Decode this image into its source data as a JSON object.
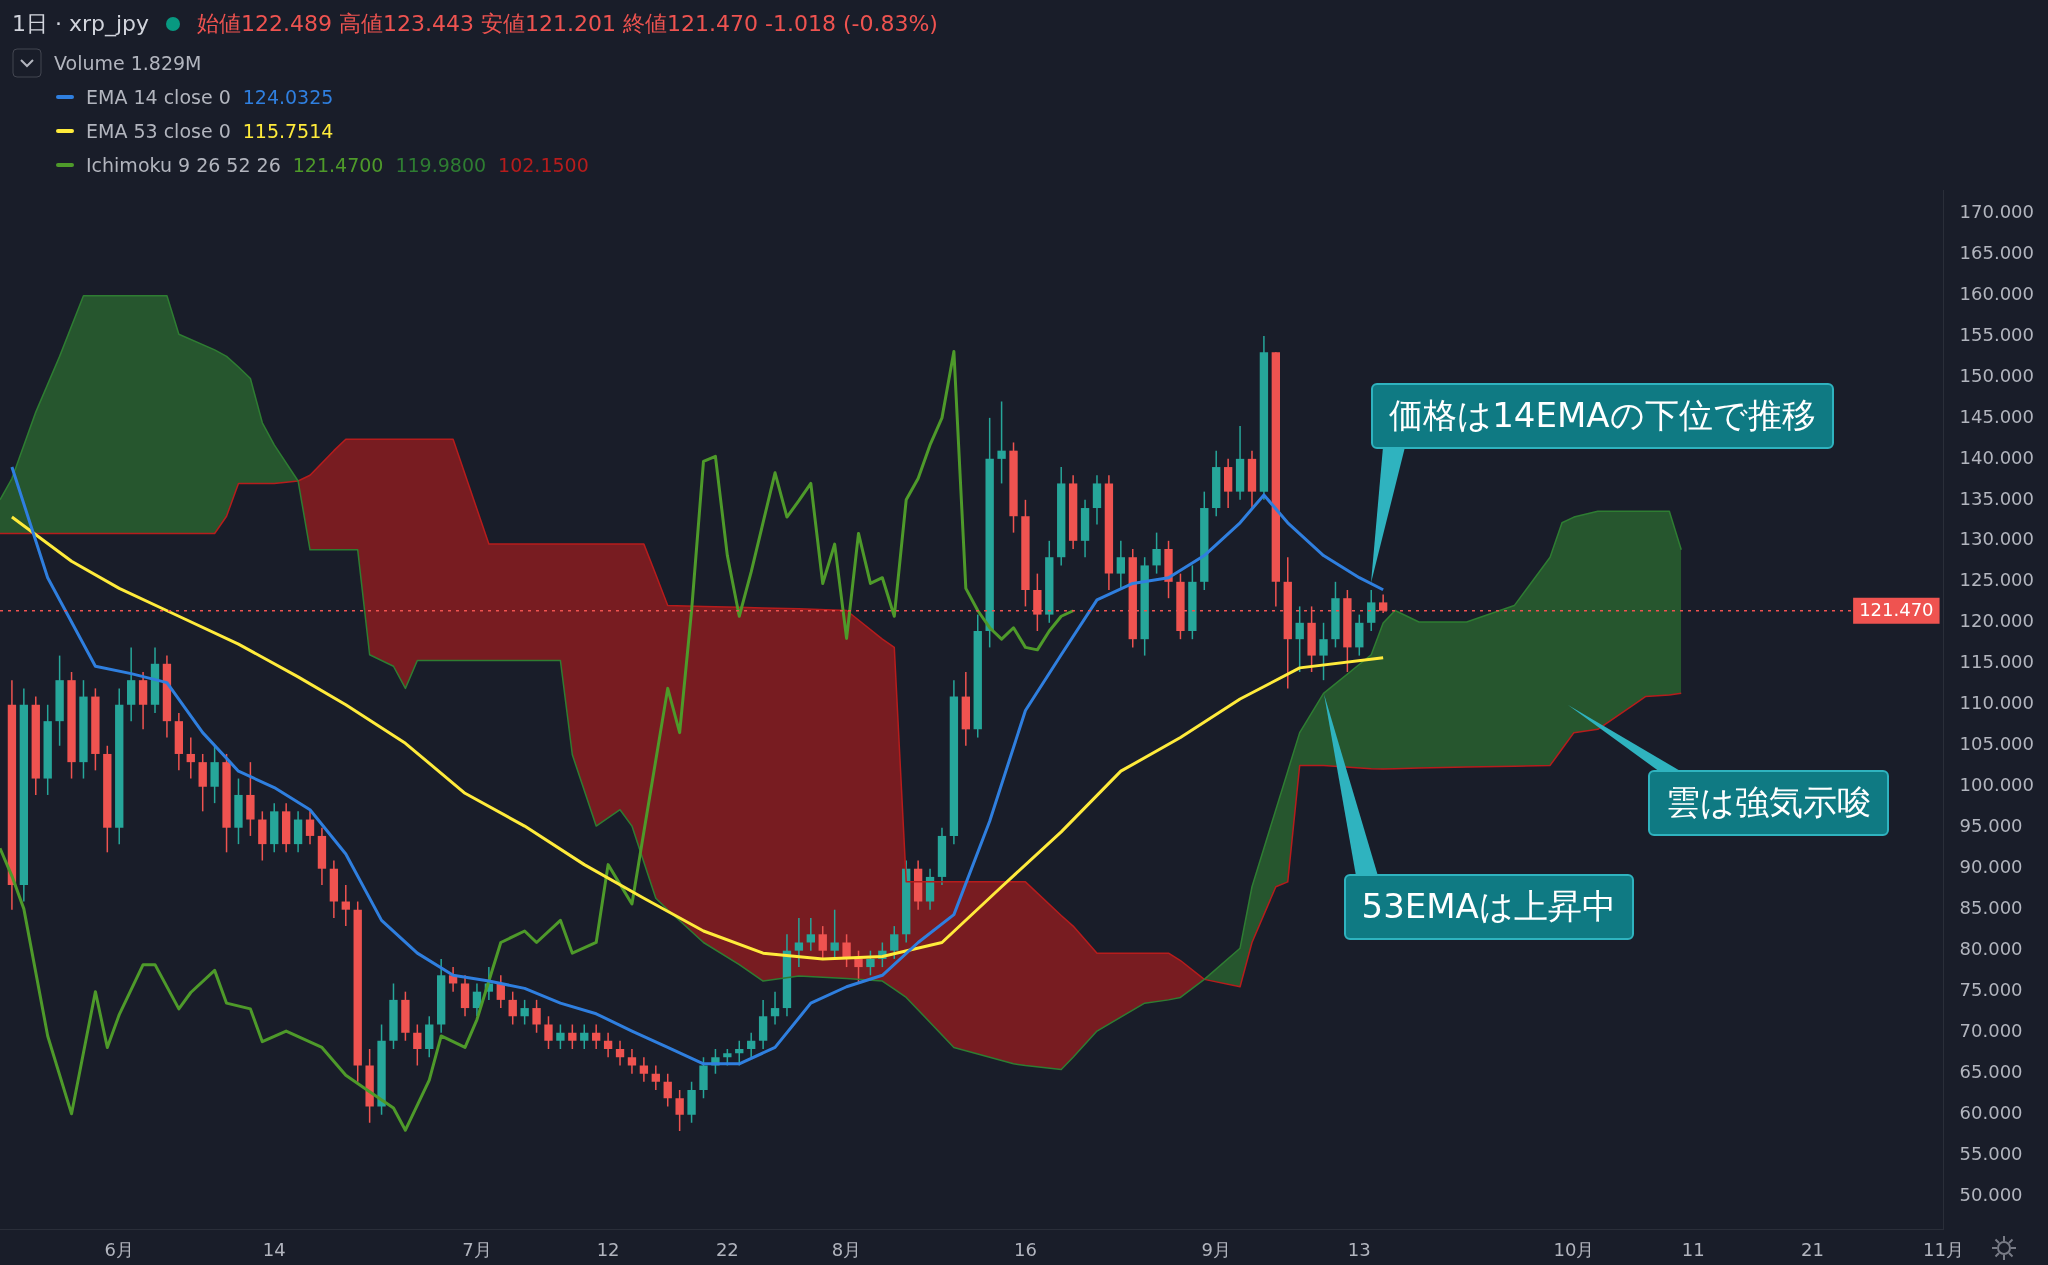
{
  "chart_data": {
    "type": "candlestick",
    "title": "1日 · xrp_jpy",
    "subtitle": "始値122.489 高値123.443 安値121.201 終値121.470 -1.018 (-0.83%)",
    "x": [
      "--05-23",
      "--05-24",
      "--05-25",
      "--05-26",
      "--05-27",
      "--05-28",
      "--05-29",
      "--05-30",
      "--05-31",
      "--06-01",
      "--06-02",
      "--06-03",
      "--06-04",
      "--06-05",
      "--06-06",
      "--06-07",
      "--06-08",
      "--06-09",
      "--06-10",
      "--06-11",
      "--06-12",
      "--06-13",
      "--06-14",
      "--06-15",
      "--06-16",
      "--06-17",
      "--06-18",
      "--06-19",
      "--06-20",
      "--06-21",
      "--06-22",
      "--06-23",
      "--06-24",
      "--06-25",
      "--06-26",
      "--06-27",
      "--06-28",
      "--06-29",
      "--06-30",
      "--07-01",
      "--07-02",
      "--07-03",
      "--07-04",
      "--07-05",
      "--07-06",
      "--07-07",
      "--07-08",
      "--07-09",
      "--07-10",
      "--07-11",
      "--07-12",
      "--07-13",
      "--07-14",
      "--07-15",
      "--07-16",
      "--07-17",
      "--07-18",
      "--07-19",
      "--07-20",
      "--07-21",
      "--07-22",
      "--07-23",
      "--07-24",
      "--07-25",
      "--07-26",
      "--07-27",
      "--07-28",
      "--07-29",
      "--07-30",
      "--07-31",
      "--08-01",
      "--08-02",
      "--08-03",
      "--08-04",
      "--08-05",
      "--08-06",
      "--08-07",
      "--08-08",
      "--08-09",
      "--08-10",
      "--08-11",
      "--08-12",
      "--08-13",
      "--08-14",
      "--08-15",
      "--08-16",
      "--08-17",
      "--08-18",
      "--08-19",
      "--08-20",
      "--08-21",
      "--08-22",
      "--08-23",
      "--08-24",
      "--08-25",
      "--08-26",
      "--08-27",
      "--08-28",
      "--08-29",
      "--08-30",
      "--08-31",
      "--09-01",
      "--09-02",
      "--09-03",
      "--09-04",
      "--09-05",
      "--09-06",
      "--09-07",
      "--09-08",
      "--09-09",
      "--09-10",
      "--09-11",
      "--09-12",
      "--09-13",
      "--09-14",
      "--09-15"
    ],
    "ohlc": [
      [
        110,
        113,
        85,
        88
      ],
      [
        88,
        112,
        86,
        110
      ],
      [
        110,
        111,
        99,
        101
      ],
      [
        101,
        110,
        99,
        108
      ],
      [
        108,
        116,
        105,
        113
      ],
      [
        113,
        114,
        101,
        103
      ],
      [
        103,
        113,
        101,
        111
      ],
      [
        111,
        112,
        102,
        104
      ],
      [
        104,
        105,
        92,
        95
      ],
      [
        95,
        112,
        93,
        110
      ],
      [
        110,
        117,
        108,
        113
      ],
      [
        113,
        114,
        107,
        110
      ],
      [
        110,
        117,
        109,
        115
      ],
      [
        115,
        116,
        106,
        108
      ],
      [
        108,
        109,
        102,
        104
      ],
      [
        104,
        106,
        101,
        103
      ],
      [
        103,
        104,
        97,
        100
      ],
      [
        100,
        105,
        98,
        103
      ],
      [
        103,
        104,
        92,
        95
      ],
      [
        95,
        101,
        93,
        99
      ],
      [
        99,
        103,
        94,
        96
      ],
      [
        96,
        97,
        91,
        93
      ],
      [
        93,
        98,
        92,
        97
      ],
      [
        97,
        98,
        92,
        93
      ],
      [
        93,
        97,
        92,
        96
      ],
      [
        96,
        97,
        93,
        94
      ],
      [
        94,
        95,
        88,
        90
      ],
      [
        90,
        91,
        84,
        86
      ],
      [
        86,
        88,
        83,
        85
      ],
      [
        85,
        86,
        64,
        66
      ],
      [
        66,
        68,
        59,
        61
      ],
      [
        61,
        71,
        60,
        69
      ],
      [
        69,
        76,
        68,
        74
      ],
      [
        74,
        75,
        69,
        70
      ],
      [
        70,
        71,
        66,
        68
      ],
      [
        68,
        72,
        67,
        71
      ],
      [
        71,
        79,
        70,
        77
      ],
      [
        77,
        78,
        75,
        76
      ],
      [
        76,
        77,
        72,
        73
      ],
      [
        73,
        76,
        72,
        75
      ],
      [
        75,
        78,
        74,
        76
      ],
      [
        76,
        77,
        73,
        74
      ],
      [
        74,
        75,
        71,
        72
      ],
      [
        72,
        74,
        71,
        73
      ],
      [
        73,
        74,
        70,
        71
      ],
      [
        71,
        72,
        68,
        69
      ],
      [
        69,
        71,
        68,
        70
      ],
      [
        70,
        71,
        68,
        69
      ],
      [
        69,
        71,
        68,
        70
      ],
      [
        70,
        71,
        68,
        69
      ],
      [
        69,
        70,
        67,
        68
      ],
      [
        68,
        69,
        66,
        67
      ],
      [
        67,
        68,
        65,
        66
      ],
      [
        66,
        67,
        64,
        65
      ],
      [
        65,
        66,
        63,
        64
      ],
      [
        64,
        65,
        61,
        62
      ],
      [
        62,
        63,
        58,
        60
      ],
      [
        60,
        64,
        59,
        63
      ],
      [
        63,
        67,
        62,
        66
      ],
      [
        66,
        68,
        65,
        67
      ],
      [
        67,
        68,
        66,
        67.5
      ],
      [
        67.5,
        69,
        66,
        68
      ],
      [
        68,
        70,
        67,
        69
      ],
      [
        69,
        74,
        68,
        72
      ],
      [
        72,
        75,
        71,
        73
      ],
      [
        73,
        82,
        72,
        80
      ],
      [
        80,
        84,
        78,
        81
      ],
      [
        81,
        84,
        80,
        82
      ],
      [
        82,
        83,
        79,
        80
      ],
      [
        80,
        85,
        79,
        81
      ],
      [
        81,
        82,
        78,
        79
      ],
      [
        79,
        80,
        76,
        78
      ],
      [
        78,
        80,
        77,
        79
      ],
      [
        79,
        81,
        78,
        80
      ],
      [
        80,
        83,
        79,
        82
      ],
      [
        82,
        91,
        81,
        90
      ],
      [
        90,
        91,
        85,
        86
      ],
      [
        86,
        90,
        85,
        89
      ],
      [
        89,
        95,
        88,
        94
      ],
      [
        94,
        113,
        93,
        111
      ],
      [
        111,
        114,
        105,
        107
      ],
      [
        107,
        121,
        106,
        119
      ],
      [
        119,
        145,
        117,
        140
      ],
      [
        140,
        147,
        137,
        141
      ],
      [
        141,
        142,
        131,
        133
      ],
      [
        133,
        135,
        122,
        124
      ],
      [
        124,
        126,
        119,
        121
      ],
      [
        121,
        130,
        120,
        128
      ],
      [
        128,
        139,
        127,
        137
      ],
      [
        137,
        138,
        129,
        130
      ],
      [
        130,
        135,
        128,
        134
      ],
      [
        134,
        138,
        132,
        137
      ],
      [
        137,
        138,
        124,
        126
      ],
      [
        126,
        130,
        124,
        128
      ],
      [
        128,
        129,
        117,
        118
      ],
      [
        118,
        128,
        116,
        127
      ],
      [
        127,
        131,
        126,
        129
      ],
      [
        129,
        130,
        123,
        125
      ],
      [
        125,
        126,
        118,
        119
      ],
      [
        119,
        127,
        118,
        125
      ],
      [
        125,
        136,
        124,
        134
      ],
      [
        134,
        141,
        133,
        139
      ],
      [
        139,
        140,
        134,
        136
      ],
      [
        136,
        144,
        135,
        140
      ],
      [
        140,
        141,
        134,
        136
      ],
      [
        136,
        155,
        135,
        153
      ],
      [
        153,
        153,
        122,
        125
      ],
      [
        125,
        128,
        112,
        118
      ],
      [
        118,
        122,
        114,
        120
      ],
      [
        120,
        122,
        114,
        116
      ],
      [
        116,
        120,
        113,
        118
      ],
      [
        118,
        125,
        117,
        123
      ],
      [
        123,
        124,
        114,
        117
      ],
      [
        117,
        121,
        116,
        120
      ],
      [
        120,
        124,
        119,
        122.489
      ],
      [
        122.489,
        123.443,
        121.201,
        121.47
      ]
    ],
    "colors": [
      "#ef5350",
      "#26a69a",
      "#ef5350",
      "#26a69a",
      "#26a69a",
      "#ef5350",
      "#26a69a",
      "#ef5350",
      "#ef5350",
      "#26a69a",
      "#26a69a",
      "#ef5350",
      "#26a69a",
      "#ef5350",
      "#ef5350",
      "#ef5350",
      "#ef5350",
      "#26a69a",
      "#ef5350",
      "#26a69a",
      "#ef5350",
      "#ef5350",
      "#26a69a",
      "#ef5350",
      "#26a69a",
      "#ef5350",
      "#ef5350",
      "#ef5350",
      "#ef5350",
      "#ef5350",
      "#ef5350",
      "#26a69a",
      "#26a69a",
      "#ef5350",
      "#ef5350",
      "#26a69a",
      "#26a69a",
      "#ef5350",
      "#ef5350",
      "#26a69a",
      "#26a69a",
      "#ef5350",
      "#ef5350",
      "#26a69a",
      "#ef5350",
      "#ef5350",
      "#26a69a",
      "#ef5350",
      "#26a69a",
      "#ef5350",
      "#ef5350",
      "#ef5350",
      "#ef5350",
      "#ef5350",
      "#ef5350",
      "#ef5350",
      "#ef5350",
      "#26a69a",
      "#26a69a",
      "#26a69a",
      "#26a69a",
      "#26a69a",
      "#26a69a",
      "#26a69a",
      "#26a69a",
      "#26a69a",
      "#26a69a",
      "#26a69a",
      "#ef5350",
      "#26a69a",
      "#ef5350",
      "#ef5350",
      "#26a69a",
      "#26a69a",
      "#26a69a",
      "#26a69a",
      "#ef5350",
      "#26a69a",
      "#26a69a",
      "#26a69a",
      "#ef5350",
      "#26a69a",
      "#26a69a",
      "#26a69a",
      "#ef5350",
      "#ef5350",
      "#ef5350",
      "#26a69a",
      "#26a69a",
      "#ef5350",
      "#26a69a",
      "#26a69a",
      "#ef5350",
      "#26a69a",
      "#ef5350",
      "#26a69a",
      "#26a69a",
      "#ef5350",
      "#ef5350",
      "#26a69a",
      "#26a69a",
      "#26a69a",
      "#ef5350",
      "#26a69a",
      "#ef5350",
      "#26a69a",
      "#ef5350",
      "#ef5350",
      "#26a69a",
      "#ef5350",
      "#26a69a",
      "#26a69a",
      "#ef5350",
      "#26a69a",
      "#26a69a",
      "#ef5350"
    ],
    "series": [
      {
        "name": "EMA 14 close 0",
        "type": "line",
        "color": "#2f7fdf",
        "x": [
          "--05-23",
          "--05-26",
          "--05-30",
          "--06-02",
          "--06-05",
          "--06-08",
          "--06-11",
          "--06-14",
          "--06-17",
          "--06-20",
          "--06-23",
          "--06-26",
          "--06-29",
          "--07-02",
          "--07-05",
          "--07-08",
          "--07-11",
          "--07-14",
          "--07-17",
          "--07-20",
          "--07-23",
          "--07-26",
          "--07-29",
          "--08-01",
          "--08-04",
          "--08-07",
          "--08-10",
          "--08-13",
          "--08-16",
          "--08-19",
          "--08-22",
          "--08-25",
          "--08-28",
          "--08-31",
          "--09-03",
          "--09-05",
          "--09-07",
          "--09-10",
          "--09-13",
          "--09-15"
        ],
        "values": [
          139,
          125.5,
          114.7,
          113.8,
          112.7,
          106.6,
          101.9,
          99.9,
          97.2,
          91.8,
          83.7,
          79.7,
          77,
          76.3,
          75.4,
          73.6,
          72.3,
          70.2,
          68.2,
          66.2,
          66.2,
          68.2,
          73.6,
          75.6,
          77,
          81,
          84.4,
          95.8,
          109.3,
          116.1,
          122.8,
          124.8,
          125.5,
          128.2,
          132.2,
          135.6,
          132.2,
          128.2,
          125.5,
          124.03
        ]
      },
      {
        "name": "EMA 53 close 0",
        "type": "line",
        "color": "#ffeb3b",
        "x": [
          "--05-23",
          "--05-28",
          "--06-01",
          "--06-06",
          "--06-11",
          "--06-16",
          "--06-20",
          "--06-25",
          "--06-30",
          "--07-05",
          "--07-10",
          "--07-15",
          "--07-20",
          "--07-25",
          "--07-30",
          "--08-04",
          "--08-09",
          "--08-14",
          "--08-19",
          "--08-24",
          "--08-29",
          "--09-03",
          "--09-08",
          "--09-15"
        ],
        "values": [
          132.9,
          127.5,
          124.2,
          120.8,
          117.4,
          113.4,
          110,
          105.3,
          99.2,
          95.2,
          90.5,
          86.4,
          82.4,
          79.7,
          79,
          79.3,
          81,
          87.8,
          94.5,
          101.9,
          106,
          110.7,
          114.5,
          115.75
        ]
      },
      {
        "name": "Ichimoku 9 26 52 26",
        "type": "line",
        "color": "#4e9a2a",
        "x": [
          "--05-22",
          "--05-23",
          "--05-24",
          "--05-26",
          "--05-28",
          "--05-30",
          "--05-31",
          "--06-01",
          "--06-03",
          "--06-04",
          "--06-06",
          "--06-07",
          "--06-09",
          "--06-10",
          "--06-12",
          "--06-13",
          "--06-15",
          "--06-18",
          "--06-20",
          "--06-22",
          "--06-24",
          "--06-25",
          "--06-27",
          "--06-28",
          "--06-30",
          "--07-01",
          "--07-03",
          "--07-05",
          "--07-06",
          "--07-08",
          "--07-09",
          "--07-11",
          "--07-12",
          "--07-14",
          "--07-15",
          "--07-17",
          "--07-18",
          "--07-19",
          "--07-20",
          "--07-21",
          "--07-22",
          "--07-23",
          "--07-24",
          "--07-26",
          "--07-27",
          "--07-28",
          "--07-29",
          "--07-30",
          "--07-31",
          "--08-01",
          "--08-02",
          "--08-03",
          "--08-04",
          "--08-05",
          "--08-06",
          "--08-07",
          "--08-08",
          "--08-09",
          "--08-10",
          "--08-11",
          "--08-12",
          "--08-13",
          "--08-14",
          "--08-15",
          "--08-16",
          "--08-17",
          "--08-18",
          "--08-19",
          "--08-20"
        ],
        "values": [
          92.5,
          89.1,
          85.1,
          69.6,
          60.1,
          75,
          68.2,
          72.2,
          78.3,
          78.3,
          72.9,
          74.9,
          77.6,
          73.6,
          72.9,
          68.9,
          70.2,
          68.2,
          64.8,
          62.8,
          60.8,
          58.1,
          64.2,
          69.6,
          68.2,
          71.6,
          81,
          82.4,
          81,
          83.7,
          79.7,
          81,
          90.5,
          85.7,
          94.5,
          112,
          106.6,
          121.5,
          139.7,
          140.3,
          128.2,
          120.8,
          126.2,
          138.3,
          132.9,
          134.9,
          137,
          124.8,
          129.6,
          118.1,
          130.9,
          124.8,
          125.5,
          120.8,
          135,
          137.6,
          141.7,
          145,
          153.1,
          124.2,
          121.5,
          119.4,
          118,
          119.4,
          117,
          116.7,
          119,
          120.8,
          121.47
        ]
      },
      {
        "type": "line",
        "color": "#2e7d32",
        "x": [
          "--05-22",
          "--05-23",
          "--05-25",
          "--05-27",
          "--05-29",
          "--06-05",
          "--06-06",
          "--06-09",
          "--06-10",
          "--06-11",
          "--06-12",
          "--06-13",
          "--06-14",
          "--06-16",
          "--06-17",
          "--06-19",
          "--06-20",
          "--06-21",
          "--06-22",
          "--06-24",
          "--06-25",
          "--06-26",
          "--06-29",
          "--07-02",
          "--07-08",
          "--07-09",
          "--07-11",
          "--07-13",
          "--07-14",
          "--07-15",
          "--07-16",
          "--07-17",
          "--07-20",
          "--07-23",
          "--07-25",
          "--07-28",
          "--08-01",
          "--08-04",
          "--08-05",
          "--08-06",
          "--08-10",
          "--08-15",
          "--08-16",
          "--08-19",
          "--08-20",
          "--08-22",
          "--08-26",
          "--08-28",
          "--08-29",
          "--08-31",
          "--09-03",
          "--09-04",
          "--09-06",
          "--09-07",
          "--09-08",
          "--09-10",
          "--09-14",
          "--09-15",
          "--09-16",
          "--09-18",
          "--09-22",
          "--09-26",
          "--09-29",
          "--09-30",
          "--10-01",
          "--10-03",
          "--10-06",
          "--10-07",
          "--10-09",
          "--10-10"
        ],
        "values": [
          135,
          137.6,
          145.7,
          152.5,
          159.9,
          159.9,
          155.2,
          153.3,
          152.5,
          151.2,
          149.8,
          144.4,
          141.7,
          137.3,
          128.9,
          128.9,
          128.9,
          128.9,
          116.1,
          114.7,
          112,
          115.4,
          115.4,
          115.4,
          115.4,
          103.9,
          95.2,
          97.2,
          95.2,
          90.8,
          86.4,
          85,
          81,
          78.3,
          76.3,
          76.9,
          76.6,
          76.3,
          75.3,
          74.3,
          68.2,
          66.2,
          66,
          65.5,
          67,
          70.2,
          73.6,
          74,
          74.3,
          76.5,
          80.3,
          87.8,
          97.2,
          101.9,
          106.6,
          111.4,
          116.1,
          119.98,
          121.5,
          120.1,
          120.1,
          122.1,
          128,
          132.2,
          132.9,
          133.6,
          133.6,
          133.6,
          133.6,
          128.9
        ],
        "lower": [
          130.9,
          130.9,
          130.9,
          130.9,
          130.9,
          130.9,
          130.9,
          130.9,
          133,
          137,
          137,
          137,
          137,
          137.3,
          null,
          null,
          null,
          null,
          null,
          null,
          null,
          null,
          null,
          null,
          null,
          null,
          null,
          null,
          null,
          null,
          null,
          null,
          null,
          null,
          null,
          null,
          null,
          null,
          null,
          null,
          null,
          null,
          null,
          null,
          null,
          null,
          null,
          null,
          null,
          76.5,
          75.6,
          81,
          87.8,
          88.4,
          102.6,
          102.6,
          102.2,
          102.15,
          102.2,
          102.3,
          102.4,
          102.5,
          102.6,
          104.6,
          106.6,
          107,
          110,
          111,
          111.2,
          111.4
        ],
        "upper": [
          135,
          137.6,
          145.7,
          152.5,
          159.9,
          159.9,
          155.2,
          153.3,
          152.5,
          151.2,
          149.8,
          144.4,
          141.7,
          137.3,
          null,
          null,
          null,
          null,
          null,
          null,
          null,
          null,
          null,
          null,
          null,
          null,
          null,
          null,
          null,
          null,
          null,
          null,
          null,
          null,
          null,
          null,
          null,
          null,
          null,
          null,
          null,
          null,
          null,
          null,
          null,
          null,
          null,
          null,
          null,
          76.5,
          80.3,
          87.8,
          97.2,
          101.9,
          106.6,
          111.4,
          116.1,
          119.98,
          121.5,
          120.1,
          120.1,
          122.1,
          128,
          132.2,
          132.9,
          133.6,
          133.6,
          133.6,
          133.6,
          128.9
        ]
      },
      {
        "type": "line",
        "color": "#b71c1c",
        "x": [
          "--05-22",
          "--05-23",
          "--05-25",
          "--05-27",
          "--05-29",
          "--06-05",
          "--06-06",
          "--06-09",
          "--06-10",
          "--06-11",
          "--06-12",
          "--06-13",
          "--06-14",
          "--06-16",
          "--06-17",
          "--06-19",
          "--06-20",
          "--06-21",
          "--06-22",
          "--06-24",
          "--06-25",
          "--06-26",
          "--06-29",
          "--07-02",
          "--07-08",
          "--07-09",
          "--07-11",
          "--07-13",
          "--07-14",
          "--07-15",
          "--07-16",
          "--07-17",
          "--07-20",
          "--07-23",
          "--07-25",
          "--07-28",
          "--08-01",
          "--08-04",
          "--08-05",
          "--08-06",
          "--08-10",
          "--08-15",
          "--08-16",
          "--08-19",
          "--08-20",
          "--08-22",
          "--08-26",
          "--08-28",
          "--08-29",
          "--08-31",
          "--09-03",
          "--09-04",
          "--09-06",
          "--09-07",
          "--09-08",
          "--09-10",
          "--09-14",
          "--09-15",
          "--09-16",
          "--09-18",
          "--09-22",
          "--09-26",
          "--09-29",
          "--09-30",
          "--10-01",
          "--10-03",
          "--10-06",
          "--10-07",
          "--10-09",
          "--10-10"
        ],
        "values": [
          130.9,
          130.9,
          130.9,
          130.9,
          130.9,
          130.9,
          130.9,
          130.9,
          133,
          137,
          137,
          137,
          137,
          137.3,
          138,
          141,
          142.4,
          142.4,
          142.4,
          142.4,
          142.4,
          142.4,
          142.4,
          129.6,
          129.6,
          129.6,
          129.6,
          129.6,
          129.6,
          129.6,
          125.9,
          122.1,
          122,
          121.9,
          121.8,
          121.7,
          121.5,
          118,
          117,
          88.4,
          88.4,
          88.4,
          88.4,
          84.3,
          83,
          79.7,
          79.7,
          79.7,
          78.8,
          76.5,
          75.6,
          81,
          87.8,
          88.4,
          102.6,
          102.6,
          102.2,
          102.15,
          102.2,
          102.3,
          102.4,
          102.5,
          102.6,
          104.6,
          106.6,
          107,
          110,
          111,
          111.2,
          111.4
        ],
        "lower": [
          null,
          null,
          null,
          null,
          null,
          null,
          null,
          null,
          null,
          null,
          null,
          null,
          null,
          137.3,
          128.9,
          128.9,
          128.9,
          128.9,
          116.1,
          114.7,
          112,
          115.4,
          115.4,
          115.4,
          115.4,
          103.9,
          95.2,
          97.2,
          95.2,
          90.8,
          86.4,
          85,
          81,
          78.3,
          76.3,
          76.9,
          76.6,
          76.3,
          75.3,
          74.3,
          68.2,
          66.2,
          66,
          65.5,
          67,
          70.2,
          73.6,
          74,
          74.3,
          76.5,
          null,
          null,
          null,
          null,
          null,
          null,
          null,
          null,
          null,
          null,
          null,
          null,
          null,
          null,
          null,
          null,
          null,
          null,
          null,
          null
        ],
        "upper": [
          null,
          null,
          null,
          null,
          null,
          null,
          null,
          null,
          null,
          null,
          null,
          null,
          null,
          137.3,
          138,
          141,
          142.4,
          142.4,
          142.4,
          142.4,
          142.4,
          142.4,
          142.4,
          129.6,
          129.6,
          129.6,
          129.6,
          129.6,
          129.6,
          129.6,
          125.9,
          122.1,
          122,
          121.9,
          121.8,
          121.7,
          121.5,
          118,
          117,
          88.4,
          88.4,
          88.4,
          88.4,
          84.3,
          83,
          79.7,
          79.7,
          79.7,
          78.8,
          76.5,
          null,
          null,
          null,
          null,
          null,
          null,
          null,
          null,
          null,
          null,
          null,
          null,
          null,
          null,
          null,
          null,
          null,
          null,
          null,
          null
        ]
      }
    ],
    "xlim": [
      "--05-22",
      "--11-01"
    ],
    "xticks": [
      {
        "value": "--06-01",
        "label": "6月"
      },
      {
        "value": "--06-14",
        "label": "14"
      },
      {
        "value": "--07-01",
        "label": "7月"
      },
      {
        "value": "--07-12",
        "label": "12"
      },
      {
        "value": "--07-22",
        "label": "22"
      },
      {
        "value": "--08-01",
        "label": "8月"
      },
      {
        "value": "--08-16",
        "label": "16"
      },
      {
        "value": "--09-01",
        "label": "9月"
      },
      {
        "value": "--09-13",
        "label": "13"
      },
      {
        "value": "--10-01",
        "label": "10月"
      },
      {
        "value": "--10-11",
        "label": "11"
      },
      {
        "value": "--10-21",
        "label": "21"
      },
      {
        "value": "--11-01",
        "label": "11月"
      }
    ],
    "ylim": [
      46,
      172.7
    ],
    "yticks": [
      {
        "value": 50,
        "label": "50.000"
      },
      {
        "value": 55,
        "label": "55.000"
      },
      {
        "value": 60,
        "label": "60.000"
      },
      {
        "value": 65,
        "label": "65.000"
      },
      {
        "value": 70,
        "label": "70.000"
      },
      {
        "value": 75,
        "label": "75.000"
      },
      {
        "value": 80,
        "label": "80.000"
      },
      {
        "value": 85,
        "label": "85.000"
      },
      {
        "value": 90,
        "label": "90.000"
      },
      {
        "value": 95,
        "label": "95.000"
      },
      {
        "value": 100,
        "label": "100.000"
      },
      {
        "value": 105,
        "label": "105.000"
      },
      {
        "value": 110,
        "label": "110.000"
      },
      {
        "value": 115,
        "label": "115.000"
      },
      {
        "value": 120,
        "label": "120.000"
      },
      {
        "value": 125,
        "label": "125.000"
      },
      {
        "value": 130,
        "label": "130.000"
      },
      {
        "value": 135,
        "label": "135.000"
      },
      {
        "value": 140,
        "label": "140.000"
      },
      {
        "value": 145,
        "label": "145.000"
      },
      {
        "value": 150,
        "label": "150.000"
      },
      {
        "value": 155,
        "label": "155.000"
      },
      {
        "value": 160,
        "label": "160.000"
      },
      {
        "value": 165,
        "label": "165.000"
      },
      {
        "value": 170,
        "label": "170.000"
      }
    ],
    "ref_lines": [
      {
        "axis": "y",
        "value": 121.47,
        "label": "121.470",
        "color": "#ef5350",
        "line_style": "dotted"
      }
    ],
    "annotations": [
      "Volume 1.829M",
      "124.0325",
      "115.7514",
      "121.4700",
      "119.9800",
      "102.1500",
      "雲は強気示唆",
      {
        "text": "価格は14EMAの下位で推移",
        "x": "--09-14",
        "y": 124.8
      },
      {
        "text": "53EMAは上昇中",
        "x": "--09-10",
        "y": 111.3
      }
    ],
    "legend": "top left"
  }
}
